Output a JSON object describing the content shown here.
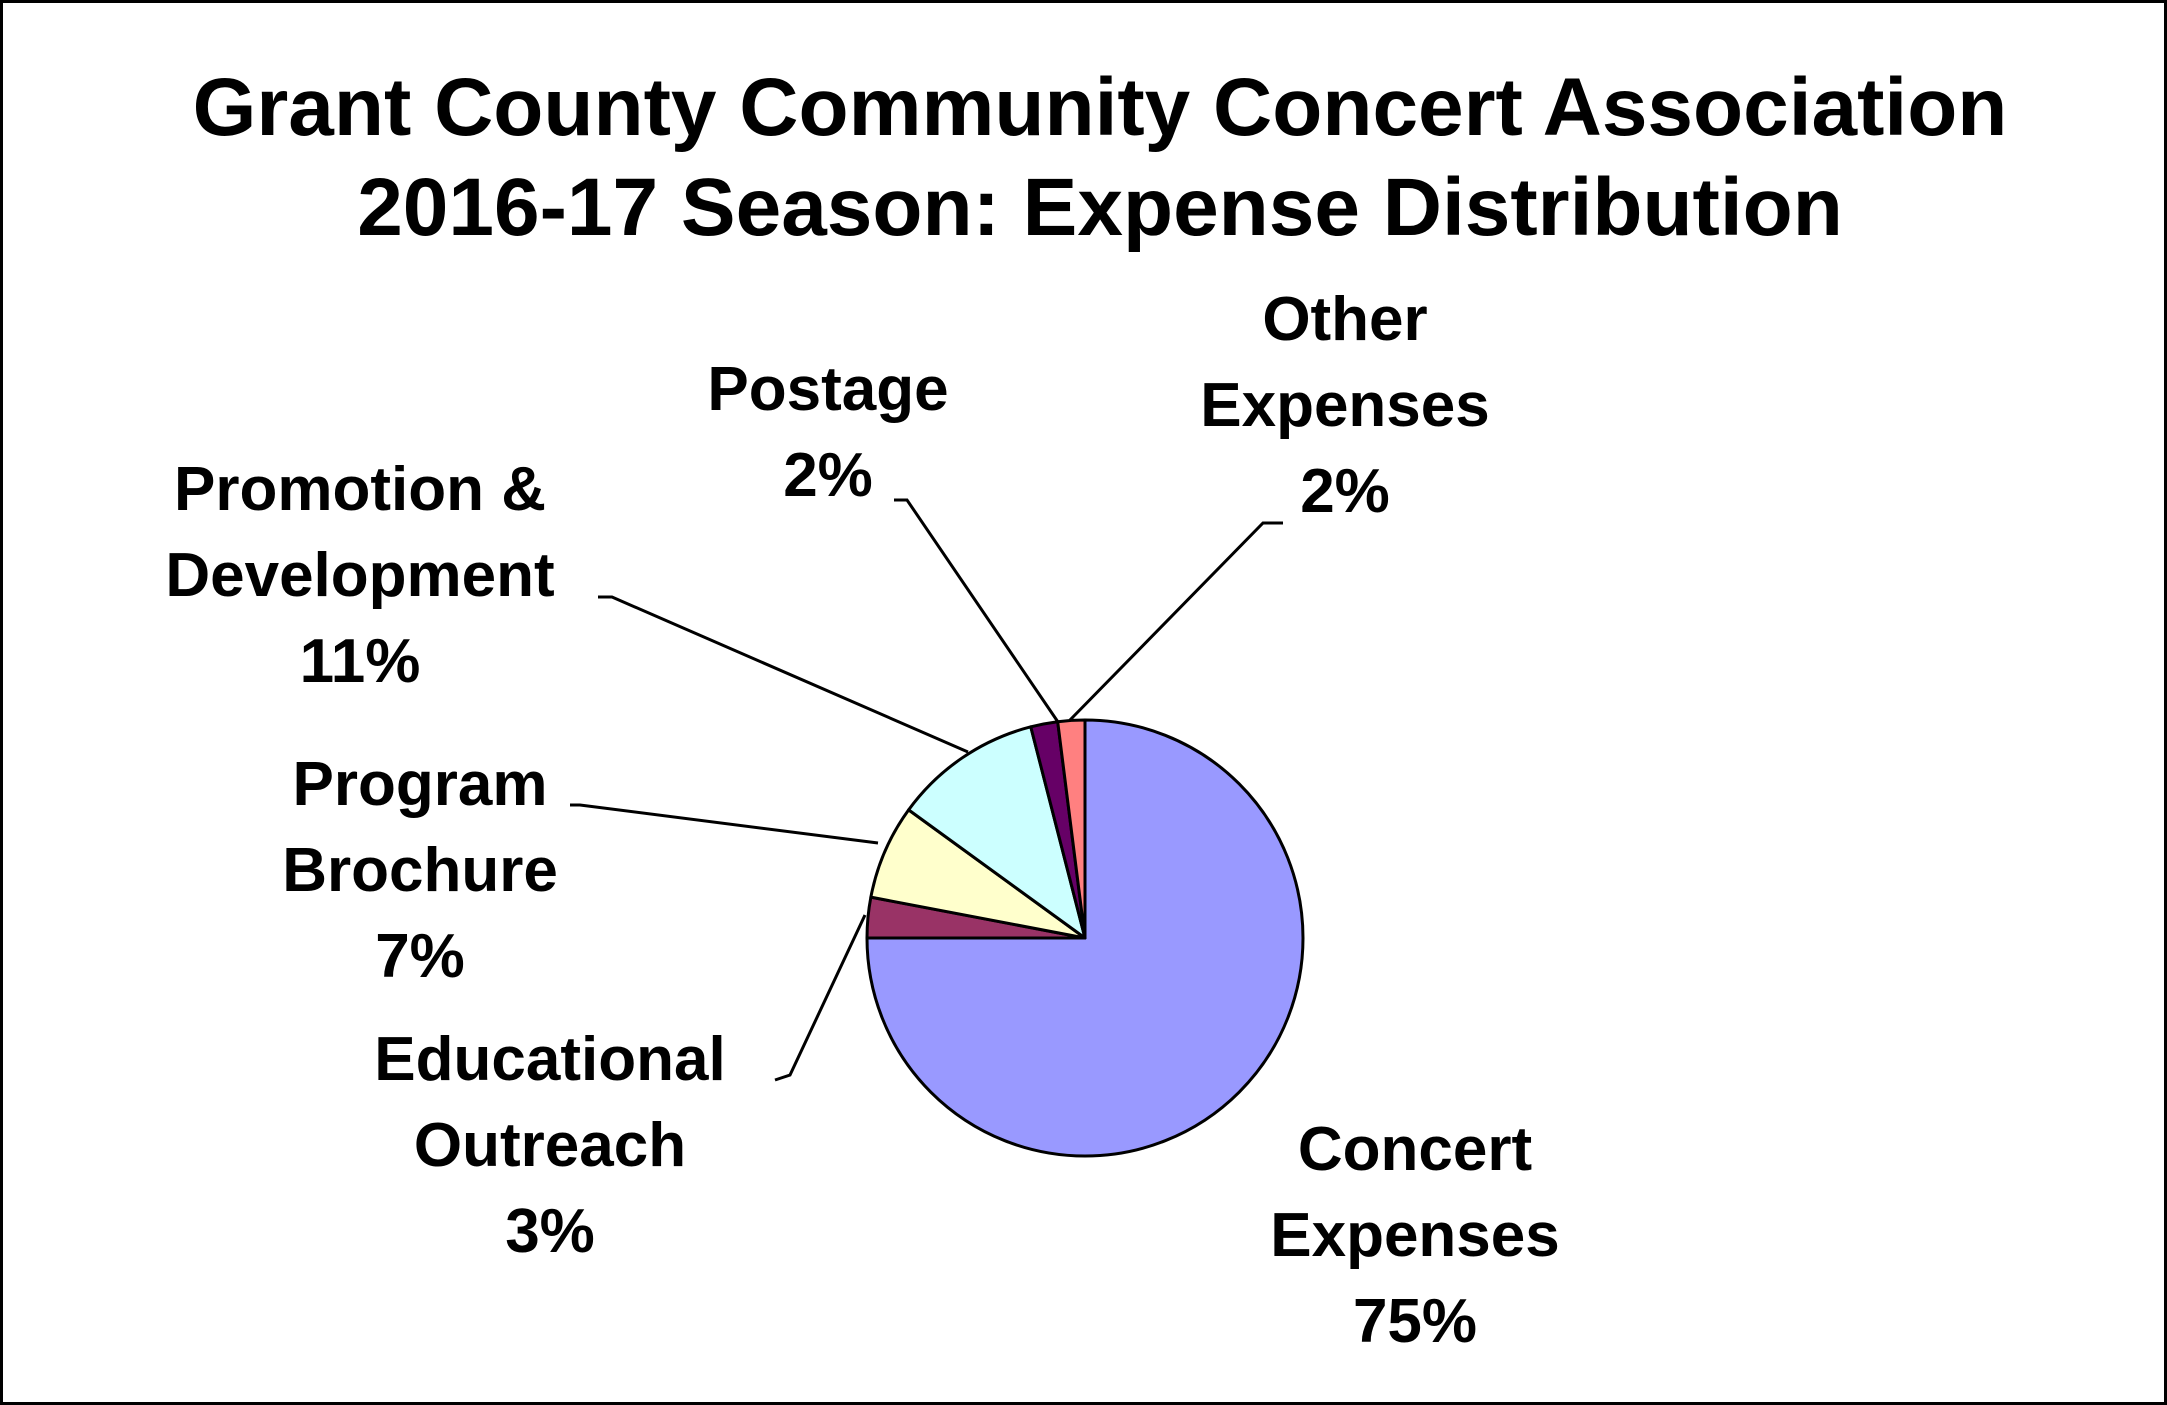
{
  "chart_data": {
    "type": "pie",
    "title": [
      "Grant County Community Concert Association",
      "2016-17 Season: Expense Distribution"
    ],
    "slices": [
      {
        "name": "Concert Expenses",
        "label_lines": [
          "Concert",
          "Expenses",
          "75%"
        ],
        "value": 75,
        "color": "#9999ff"
      },
      {
        "name": "Educational Outreach",
        "label_lines": [
          "Educational",
          "Outreach",
          "3%"
        ],
        "value": 3,
        "color": "#993366"
      },
      {
        "name": "Program Brochure",
        "label_lines": [
          "Program",
          "Brochure",
          "7%"
        ],
        "value": 7,
        "color": "#ffffcc"
      },
      {
        "name": "Promotion & Development",
        "label_lines": [
          "Promotion &",
          "Development",
          "11%"
        ],
        "value": 11,
        "color": "#ccffff"
      },
      {
        "name": "Postage",
        "label_lines": [
          "Postage",
          "2%"
        ],
        "value": 2,
        "color": "#660066"
      },
      {
        "name": "Other Expenses",
        "label_lines": [
          "Other",
          "Expenses",
          "2%"
        ],
        "value": 2,
        "color": "#ff8080"
      }
    ]
  }
}
